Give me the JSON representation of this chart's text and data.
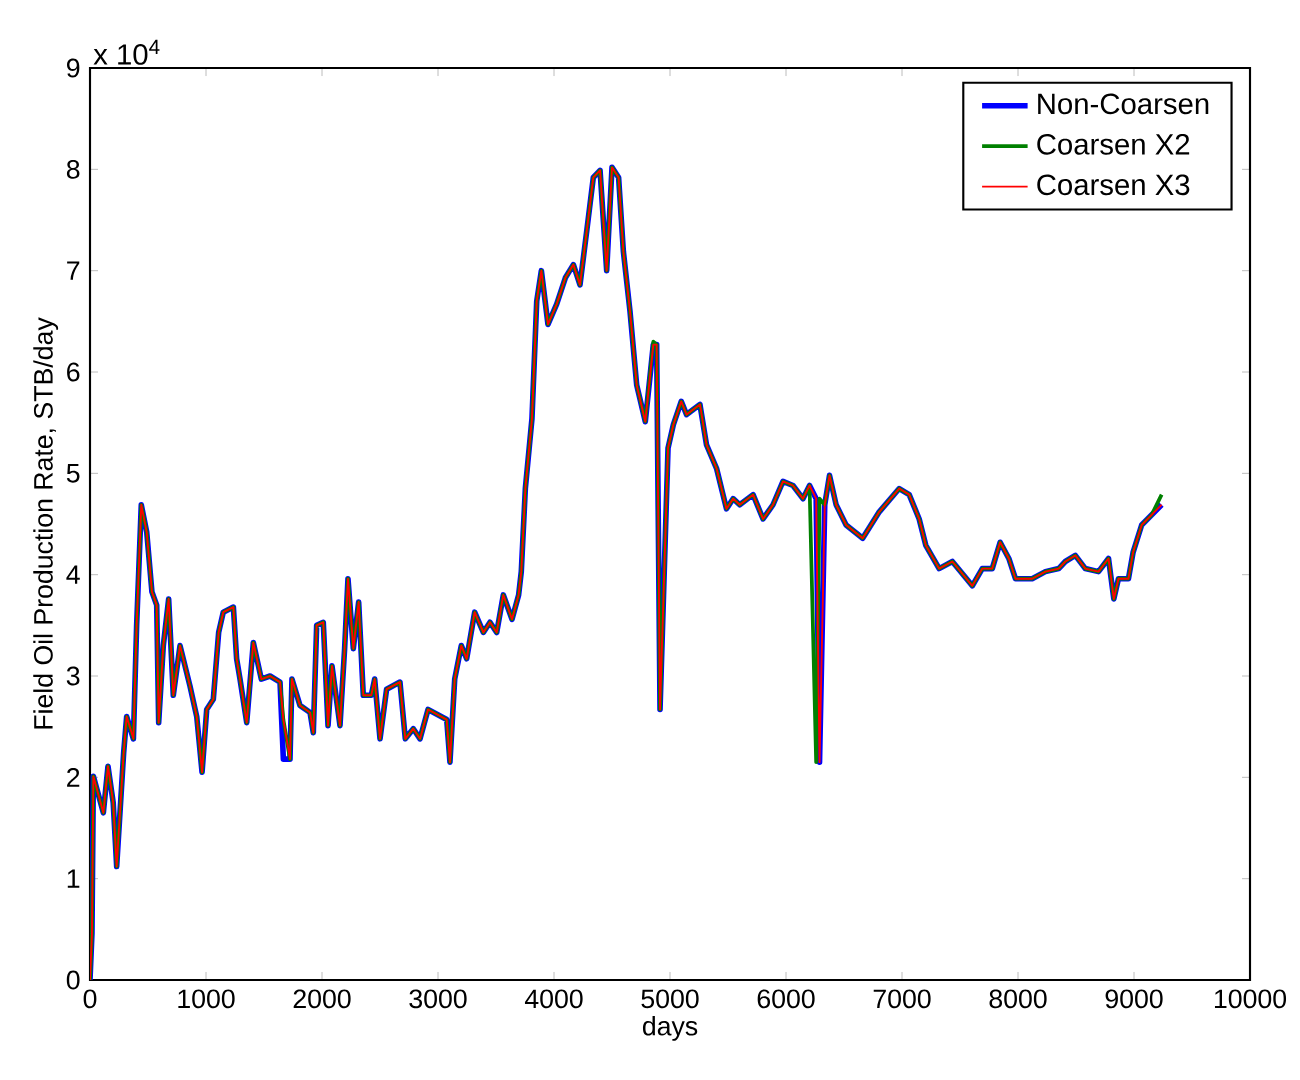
{
  "chart_data": {
    "type": "line",
    "xlabel": "days",
    "ylabel": "Field Oil Production Rate, STB/day",
    "annotations": [
      "x 10$^{4}$"
    ],
    "x": [
      0,
      17,
      29,
      115,
      155,
      200,
      230,
      290,
      316,
      374,
      402,
      442,
      489,
      534,
      575,
      592,
      632,
      678,
      718,
      776,
      862,
      920,
      966,
      1006,
      1063,
      1109,
      1149,
      1236,
      1264,
      1293,
      1351,
      1408,
      1477,
      1552,
      1638,
      1667,
      1724,
      1741,
      1810,
      1897,
      1925,
      1954,
      2011,
      2052,
      2086,
      2155,
      2195,
      2224,
      2270,
      2316,
      2356,
      2425,
      2454,
      2500,
      2557,
      2672,
      2718,
      2787,
      2845,
      2914,
      3075,
      3103,
      3144,
      3201,
      3247,
      3316,
      3391,
      3448,
      3506,
      3563,
      3638,
      3695,
      3718,
      3753,
      3810,
      3851,
      3891,
      3948,
      4023,
      4098,
      4167,
      4224,
      4282,
      4339,
      4397,
      4454,
      4500,
      4557,
      4598,
      4655,
      4713,
      4787,
      4856,
      4885,
      4914,
      4983,
      5029,
      5097,
      5143,
      5258,
      5315,
      5401,
      5487,
      5544,
      5601,
      5716,
      5802,
      5888,
      5974,
      6060,
      6146,
      6203,
      6260,
      6289,
      6334,
      6375,
      6432,
      6518,
      6661,
      6804,
      6976,
      7062,
      7148,
      7205,
      7320,
      7434,
      7606,
      7692,
      7778,
      7846,
      7921,
      7978,
      8122,
      8236,
      8351,
      8408,
      8494,
      8580,
      8694,
      8780,
      8826,
      8866,
      8952,
      8992,
      9066,
      9152,
      9238
    ],
    "series": [
      {
        "name": "Non-Coarsen",
        "color": "#0000ff",
        "values": [
          0,
          0.46,
          2.01,
          1.65,
          2.11,
          1.75,
          1.12,
          2.24,
          2.6,
          2.38,
          3.5,
          4.69,
          4.42,
          3.83,
          3.7,
          2.54,
          3.3,
          3.76,
          2.81,
          3.3,
          2.9,
          2.6,
          2.05,
          2.67,
          2.77,
          3.43,
          3.63,
          3.68,
          3.17,
          2.97,
          2.54,
          3.33,
          2.97,
          3.0,
          2.94,
          2.18,
          2.18,
          2.97,
          2.71,
          2.64,
          2.44,
          3.5,
          3.53,
          2.51,
          3.1,
          2.51,
          3.27,
          3.96,
          3.27,
          3.73,
          2.81,
          2.81,
          2.97,
          2.38,
          2.87,
          2.94,
          2.38,
          2.48,
          2.38,
          2.67,
          2.57,
          2.15,
          2.97,
          3.3,
          3.17,
          3.63,
          3.43,
          3.53,
          3.43,
          3.8,
          3.56,
          3.8,
          4.03,
          4.85,
          5.54,
          6.7,
          7.0,
          6.47,
          6.67,
          6.93,
          7.06,
          6.86,
          7.39,
          7.92,
          7.99,
          7.0,
          8.02,
          7.92,
          7.19,
          6.6,
          5.87,
          5.51,
          6.27,
          6.27,
          2.67,
          5.25,
          5.48,
          5.71,
          5.58,
          5.68,
          5.28,
          5.05,
          4.65,
          4.75,
          4.69,
          4.79,
          4.55,
          4.69,
          4.92,
          4.88,
          4.75,
          4.88,
          4.75,
          2.15,
          4.69,
          4.98,
          4.69,
          4.49,
          4.36,
          4.62,
          4.85,
          4.79,
          4.55,
          4.29,
          4.06,
          4.13,
          3.89,
          4.06,
          4.06,
          4.32,
          4.16,
          3.96,
          3.96,
          4.03,
          4.06,
          4.13,
          4.19,
          4.06,
          4.03,
          4.16,
          3.76,
          3.96,
          3.96,
          4.22,
          4.49,
          4.59,
          4.69
        ]
      },
      {
        "name": "Coarsen X2",
        "color": "#008000",
        "values": [
          0,
          0.46,
          2.01,
          1.65,
          2.11,
          1.75,
          1.12,
          2.24,
          2.6,
          2.38,
          3.5,
          4.69,
          4.42,
          3.83,
          3.7,
          2.54,
          3.3,
          3.76,
          2.81,
          3.3,
          2.9,
          2.6,
          2.05,
          2.67,
          2.77,
          3.43,
          3.63,
          3.68,
          3.17,
          2.97,
          2.54,
          3.33,
          2.97,
          3.0,
          2.94,
          2.57,
          2.18,
          2.97,
          2.71,
          2.64,
          2.44,
          3.5,
          3.53,
          2.51,
          3.1,
          2.51,
          3.27,
          3.96,
          3.27,
          3.73,
          2.81,
          2.81,
          2.97,
          2.38,
          2.87,
          2.94,
          2.38,
          2.48,
          2.38,
          2.67,
          2.57,
          2.15,
          2.97,
          3.3,
          3.17,
          3.63,
          3.43,
          3.53,
          3.43,
          3.8,
          3.56,
          3.8,
          4.03,
          4.85,
          5.54,
          6.7,
          7.0,
          6.47,
          6.67,
          6.93,
          7.06,
          6.86,
          7.39,
          7.92,
          7.99,
          7.0,
          8.02,
          7.92,
          7.19,
          6.6,
          5.87,
          5.51,
          6.3,
          6.27,
          2.67,
          5.25,
          5.48,
          5.71,
          5.58,
          5.68,
          5.28,
          5.05,
          4.65,
          4.75,
          4.69,
          4.79,
          4.55,
          4.69,
          4.92,
          4.88,
          4.75,
          4.88,
          2.15,
          4.75,
          4.69,
          4.98,
          4.69,
          4.49,
          4.36,
          4.62,
          4.85,
          4.79,
          4.55,
          4.29,
          4.06,
          4.13,
          3.89,
          4.06,
          4.06,
          4.32,
          4.16,
          3.96,
          3.96,
          4.03,
          4.06,
          4.13,
          4.19,
          4.06,
          4.03,
          4.16,
          3.76,
          3.96,
          3.96,
          4.22,
          4.49,
          4.59,
          4.79
        ]
      },
      {
        "name": "Coarsen X3",
        "color": "#ff0000",
        "values": [
          0,
          0.46,
          2.01,
          1.65,
          2.11,
          1.75,
          1.12,
          2.24,
          2.6,
          2.38,
          3.5,
          4.69,
          4.42,
          3.83,
          3.7,
          2.54,
          3.3,
          3.76,
          2.81,
          3.3,
          2.9,
          2.6,
          2.05,
          2.67,
          2.77,
          3.43,
          3.63,
          3.68,
          3.17,
          2.97,
          2.54,
          3.33,
          2.97,
          3.0,
          2.94,
          2.57,
          2.18,
          2.97,
          2.71,
          2.64,
          2.44,
          3.5,
          3.53,
          2.51,
          3.1,
          2.51,
          3.27,
          3.96,
          3.27,
          3.73,
          2.81,
          2.81,
          2.97,
          2.38,
          2.87,
          2.94,
          2.38,
          2.48,
          2.38,
          2.67,
          2.57,
          2.15,
          2.97,
          3.3,
          3.17,
          3.63,
          3.43,
          3.53,
          3.43,
          3.8,
          3.56,
          3.8,
          4.03,
          4.85,
          5.54,
          6.7,
          7.0,
          6.47,
          6.67,
          6.93,
          7.06,
          6.86,
          7.39,
          7.92,
          7.99,
          7.0,
          8.02,
          7.92,
          7.19,
          6.6,
          5.87,
          5.51,
          6.27,
          6.27,
          2.67,
          5.25,
          5.48,
          5.71,
          5.58,
          5.68,
          5.28,
          5.05,
          4.65,
          4.75,
          4.69,
          4.79,
          4.55,
          4.69,
          4.92,
          4.88,
          4.75,
          4.88,
          4.75,
          2.15,
          4.69,
          4.98,
          4.69,
          4.49,
          4.36,
          4.62,
          4.85,
          4.79,
          4.55,
          4.29,
          4.06,
          4.13,
          3.89,
          4.06,
          4.06,
          4.32,
          4.16,
          3.96,
          3.96,
          4.03,
          4.06,
          4.13,
          4.19,
          4.06,
          4.03,
          4.16,
          3.76,
          3.96,
          3.96,
          4.22,
          4.49,
          4.59,
          4.69
        ]
      }
    ],
    "xlim": [
      0,
      10000
    ],
    "xticks": [
      0,
      1000,
      2000,
      3000,
      4000,
      5000,
      6000,
      7000,
      8000,
      9000,
      10000
    ],
    "ylim": [
      0,
      9
    ],
    "yticks": [
      0,
      1,
      2,
      3,
      4,
      5,
      6,
      7,
      8,
      9
    ],
    "grid": false,
    "legend": "top right",
    "line_style": "solid",
    "marker": "none"
  }
}
